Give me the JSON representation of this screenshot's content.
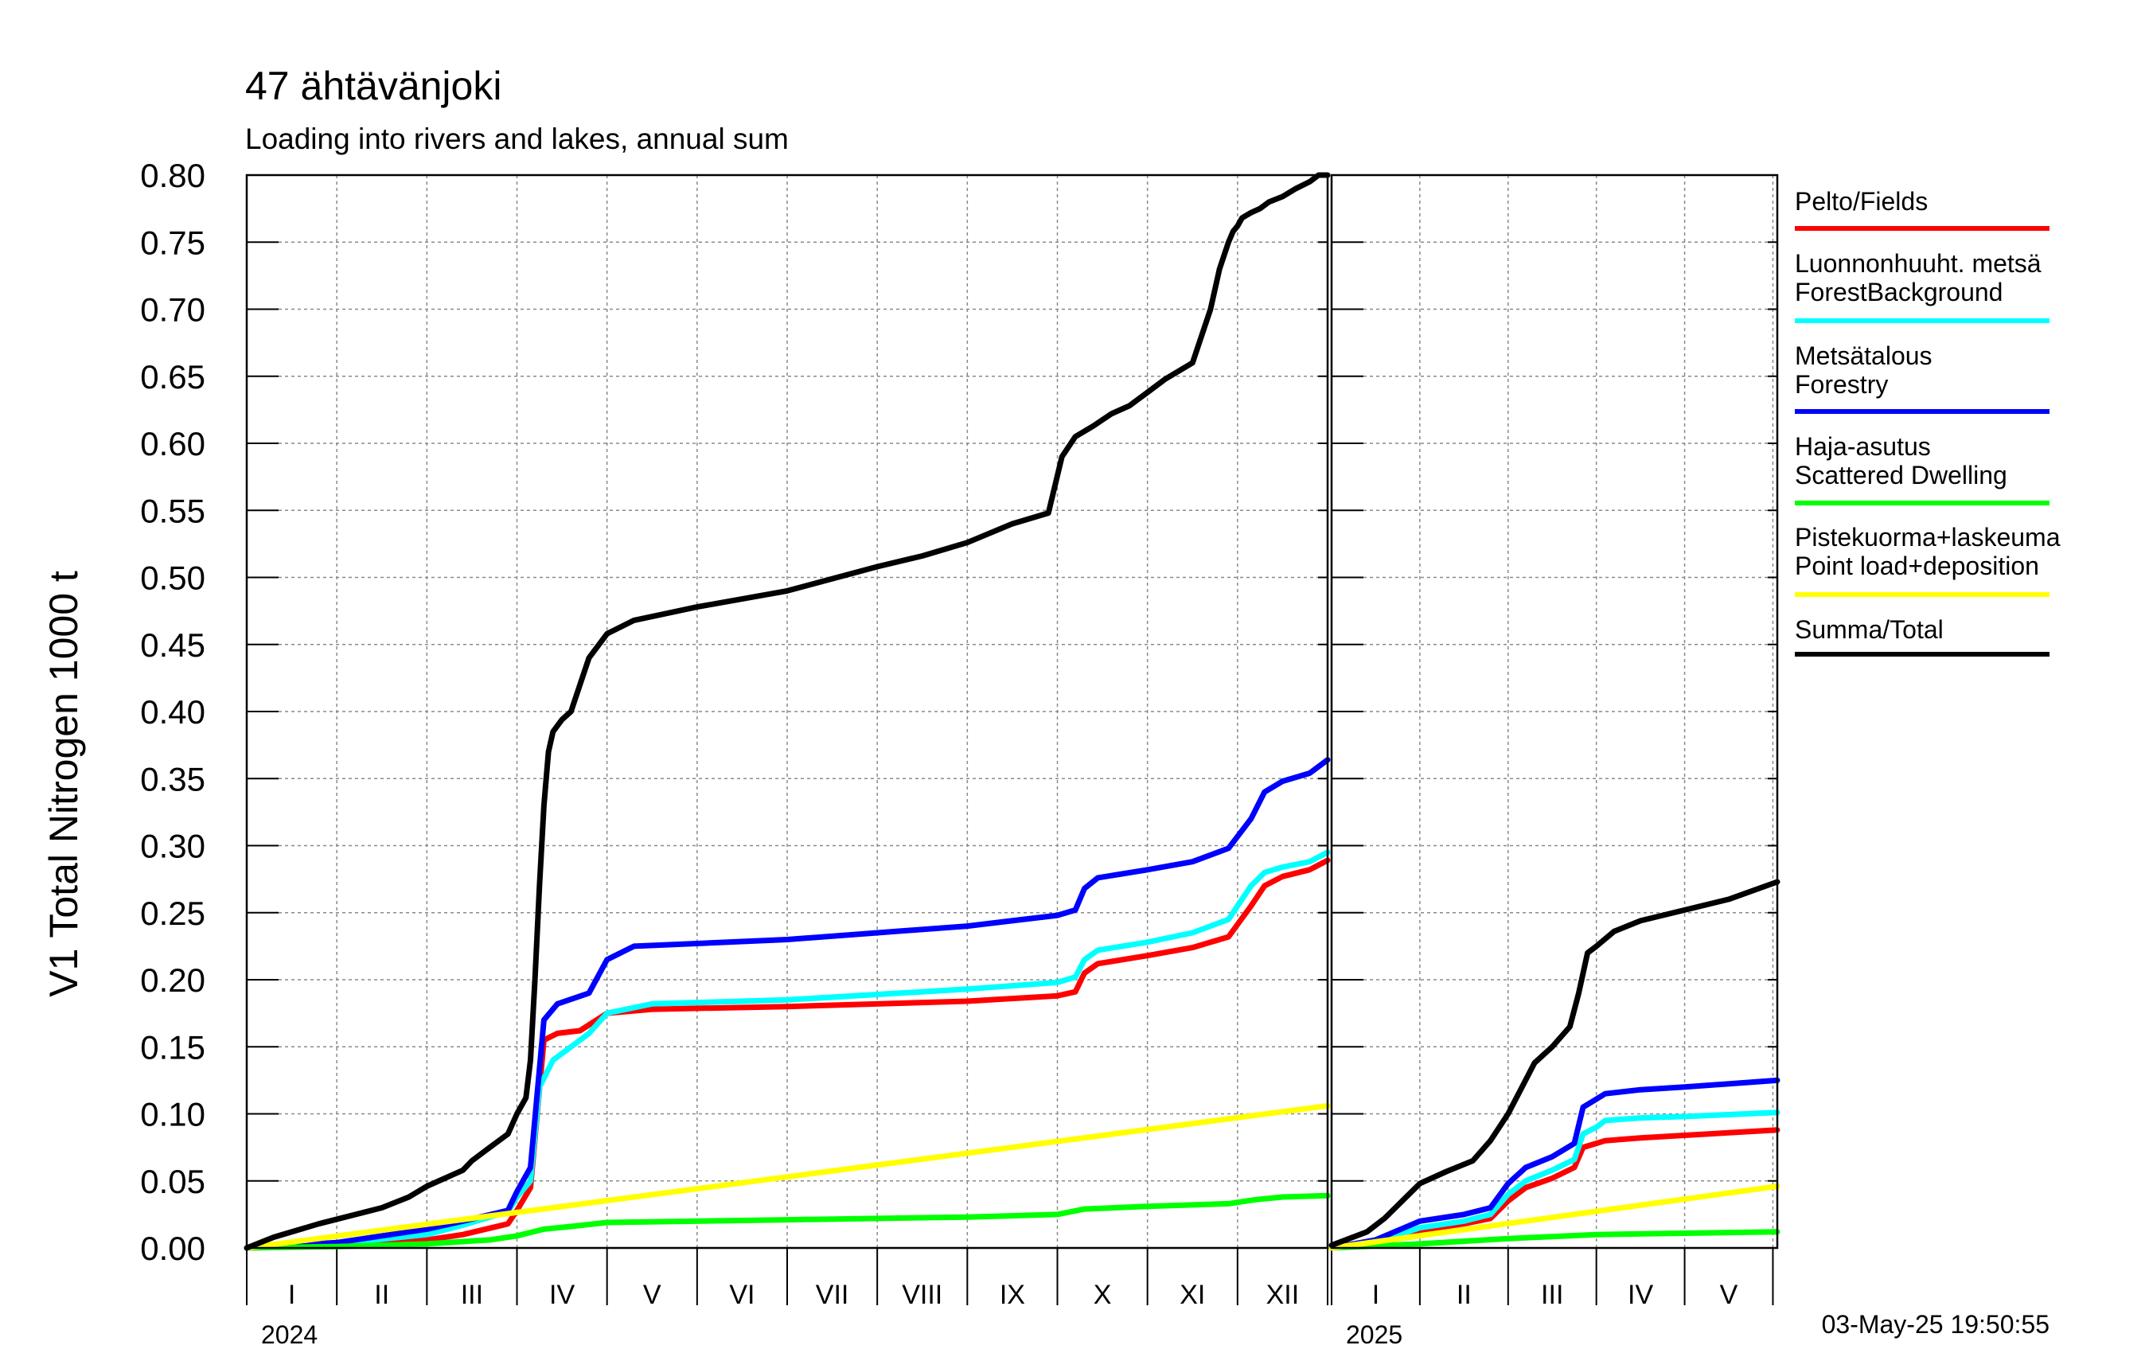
{
  "header": {
    "title": "47 ähtävänjoki",
    "subtitle": "Loading into rivers and lakes, annual sum"
  },
  "timestamp": "03-May-25 19:50:55",
  "chart_data": {
    "type": "line",
    "title": "47 ähtävänjoki",
    "subtitle": "Loading into rivers and lakes, annual sum",
    "ylabel": "V1 Total Nitrogen 1000 t",
    "ylim": [
      0,
      0.8
    ],
    "y_ticks": [
      "0.00",
      "0.05",
      "0.10",
      "0.15",
      "0.20",
      "0.25",
      "0.30",
      "0.35",
      "0.40",
      "0.45",
      "0.50",
      "0.55",
      "0.60",
      "0.65",
      "0.70",
      "0.75",
      "0.80"
    ],
    "grid": true,
    "legend_position": "right",
    "panels": [
      {
        "year": "2024",
        "months": [
          "I",
          "II",
          "III",
          "IV",
          "V",
          "VI",
          "VII",
          "VIII",
          "IX",
          "X",
          "XI",
          "XII"
        ],
        "x_unit": "month (0 = 1 Jan, 12 = 31 Dec)",
        "xlim": [
          0,
          12
        ],
        "series": [
          {
            "name": "Pelto/Fields",
            "color": "#ff0000",
            "x": [
              0,
              1,
              2,
              2.4,
              2.9,
              3,
              3.15,
              3.3,
              3.45,
              3.7,
              4,
              4.5,
              6,
              8,
              9,
              9.2,
              9.3,
              9.45,
              10,
              10.5,
              10.9,
              11.15,
              11.3,
              11.5,
              11.8,
              12
            ],
            "y": [
              0,
              0.002,
              0.006,
              0.01,
              0.018,
              0.028,
              0.045,
              0.155,
              0.16,
              0.162,
              0.175,
              0.178,
              0.18,
              0.184,
              0.188,
              0.191,
              0.205,
              0.212,
              0.218,
              0.224,
              0.232,
              0.255,
              0.27,
              0.277,
              0.282,
              0.289
            ]
          },
          {
            "name": "Luonnonhuuht. metsä / ForestBackground",
            "color": "#00ffff",
            "x": [
              0,
              1,
              2,
              2.4,
              2.9,
              3,
              3.15,
              3.25,
              3.4,
              3.6,
              3.8,
              4,
              4.5,
              6,
              8,
              9,
              9.2,
              9.3,
              9.45,
              10,
              10.5,
              10.9,
              11.15,
              11.3,
              11.5,
              11.8,
              12
            ],
            "y": [
              0,
              0.003,
              0.01,
              0.017,
              0.027,
              0.038,
              0.05,
              0.12,
              0.14,
              0.15,
              0.16,
              0.175,
              0.182,
              0.185,
              0.193,
              0.198,
              0.202,
              0.215,
              0.222,
              0.228,
              0.235,
              0.245,
              0.27,
              0.28,
              0.284,
              0.288,
              0.295
            ]
          },
          {
            "name": "Metsätalous / Forestry",
            "color": "#0000ff",
            "x": [
              0,
              1,
              2,
              2.4,
              2.9,
              3,
              3.15,
              3.3,
              3.45,
              3.8,
              4,
              4.3,
              6,
              8,
              9,
              9.2,
              9.3,
              9.45,
              10,
              10.5,
              10.9,
              11.15,
              11.3,
              11.5,
              11.8,
              12
            ],
            "y": [
              0,
              0.004,
              0.014,
              0.02,
              0.028,
              0.042,
              0.06,
              0.17,
              0.182,
              0.19,
              0.215,
              0.225,
              0.23,
              0.24,
              0.248,
              0.252,
              0.268,
              0.276,
              0.282,
              0.288,
              0.298,
              0.32,
              0.34,
              0.348,
              0.354,
              0.364
            ]
          },
          {
            "name": "Haja-asutus / Scattered Dwelling",
            "color": "#00ff00",
            "x": [
              0,
              1,
              2,
              2.7,
              3,
              3.3,
              3.6,
              4,
              6,
              8,
              9,
              9.3,
              10,
              10.9,
              11.2,
              11.5,
              12
            ],
            "y": [
              0,
              0.001,
              0.003,
              0.006,
              0.009,
              0.014,
              0.016,
              0.019,
              0.021,
              0.023,
              0.025,
              0.029,
              0.031,
              0.033,
              0.036,
              0.038,
              0.039
            ]
          },
          {
            "name": "Pistekuorma+laskeuma / Point load+deposition",
            "color": "#ffff00",
            "x": [
              0,
              12
            ],
            "y": [
              0,
              0.106
            ]
          },
          {
            "name": "Summa/Total",
            "color": "#000000",
            "x": [
              0,
              0.3,
              0.8,
              1.5,
              1.8,
              2,
              2.4,
              2.5,
              2.7,
              2.9,
              3,
              3.1,
              3.15,
              3.2,
              3.25,
              3.3,
              3.35,
              3.4,
              3.5,
              3.6,
              3.7,
              3.8,
              4,
              4.3,
              5,
              6,
              7,
              7.5,
              8,
              8.5,
              8.9,
              9.05,
              9.2,
              9.4,
              9.6,
              9.8,
              10,
              10.2,
              10.5,
              10.7,
              10.8,
              10.9,
              10.95,
              11,
              11.05,
              11.1,
              11.15,
              11.25,
              11.35,
              11.5,
              11.65,
              11.8,
              11.9,
              12
            ],
            "y": [
              0,
              0.008,
              0.018,
              0.03,
              0.038,
              0.046,
              0.058,
              0.065,
              0.075,
              0.085,
              0.1,
              0.112,
              0.14,
              0.2,
              0.27,
              0.33,
              0.37,
              0.385,
              0.394,
              0.4,
              0.42,
              0.44,
              0.458,
              0.468,
              0.478,
              0.49,
              0.508,
              0.516,
              0.526,
              0.54,
              0.548,
              0.59,
              0.605,
              0.613,
              0.622,
              0.628,
              0.638,
              0.648,
              0.66,
              0.7,
              0.73,
              0.75,
              0.758,
              0.762,
              0.768,
              0.77,
              0.772,
              0.775,
              0.78,
              0.784,
              0.79,
              0.795,
              0.8,
              0.8
            ]
          }
        ]
      },
      {
        "year": "2025",
        "months": [
          "I",
          "II",
          "III",
          "IV",
          "V"
        ],
        "x_unit": "month (0 = 1 Jan)",
        "xlim": [
          0,
          5.05
        ],
        "series": [
          {
            "name": "Pelto/Fields",
            "color": "#ff0000",
            "x": [
              0,
              0.5,
              1,
              1.5,
              1.8,
              2,
              2.2,
              2.5,
              2.75,
              2.85,
              3,
              3.1,
              3.5,
              4,
              5.05
            ],
            "y": [
              0,
              0.003,
              0.013,
              0.018,
              0.022,
              0.035,
              0.045,
              0.052,
              0.06,
              0.075,
              0.078,
              0.08,
              0.082,
              0.084,
              0.088
            ]
          },
          {
            "name": "Luonnonhuuht. metsä / ForestBackground",
            "color": "#00ffff",
            "x": [
              0,
              0.5,
              1,
              1.5,
              1.8,
              2,
              2.2,
              2.5,
              2.75,
              2.85,
              3,
              3.1,
              3.5,
              4,
              5.05
            ],
            "y": [
              0,
              0.004,
              0.015,
              0.02,
              0.025,
              0.04,
              0.05,
              0.058,
              0.066,
              0.085,
              0.09,
              0.095,
              0.097,
              0.098,
              0.101
            ]
          },
          {
            "name": "Metsätalous / Forestry",
            "color": "#0000ff",
            "x": [
              0,
              0.5,
              1,
              1.5,
              1.8,
              2,
              2.2,
              2.5,
              2.75,
              2.85,
              3,
              3.1,
              3.5,
              4,
              5.05
            ],
            "y": [
              0,
              0.006,
              0.02,
              0.025,
              0.03,
              0.048,
              0.06,
              0.068,
              0.078,
              0.105,
              0.111,
              0.115,
              0.118,
              0.12,
              0.125
            ]
          },
          {
            "name": "Haja-asutus / Scattered Dwelling",
            "color": "#00ff00",
            "x": [
              0,
              1,
              2,
              3,
              4,
              5.05
            ],
            "y": [
              0,
              0.003,
              0.007,
              0.01,
              0.011,
              0.012
            ]
          },
          {
            "name": "Pistekuorma+laskeuma / Point load+deposition",
            "color": "#ffff00",
            "x": [
              0,
              5.05
            ],
            "y": [
              0,
              0.046
            ]
          },
          {
            "name": "Summa/Total",
            "color": "#000000",
            "x": [
              0,
              0.4,
              0.6,
              0.8,
              1,
              1.3,
              1.6,
              1.8,
              2,
              2.3,
              2.5,
              2.7,
              2.8,
              2.9,
              3,
              3.2,
              3.5,
              4,
              4.5,
              5.05
            ],
            "y": [
              0.002,
              0.012,
              0.022,
              0.035,
              0.048,
              0.057,
              0.065,
              0.08,
              0.1,
              0.138,
              0.15,
              0.165,
              0.19,
              0.22,
              0.225,
              0.236,
              0.244,
              0.252,
              0.26,
              0.273
            ]
          }
        ]
      }
    ],
    "legend": [
      {
        "lines": [
          "Pelto/Fields"
        ],
        "color": "#ff0000"
      },
      {
        "lines": [
          "Luonnonhuuht. metsä",
          "ForestBackground"
        ],
        "color": "#00ffff"
      },
      {
        "lines": [
          "Metsätalous",
          "Forestry"
        ],
        "color": "#0000ff"
      },
      {
        "lines": [
          "Haja-asutus",
          "Scattered Dwelling"
        ],
        "color": "#00ff00"
      },
      {
        "lines": [
          "Pistekuorma+laskeuma",
          "Point load+deposition"
        ],
        "color": "#ffff00"
      },
      {
        "lines": [
          "Summa/Total"
        ],
        "color": "#000000"
      }
    ]
  }
}
